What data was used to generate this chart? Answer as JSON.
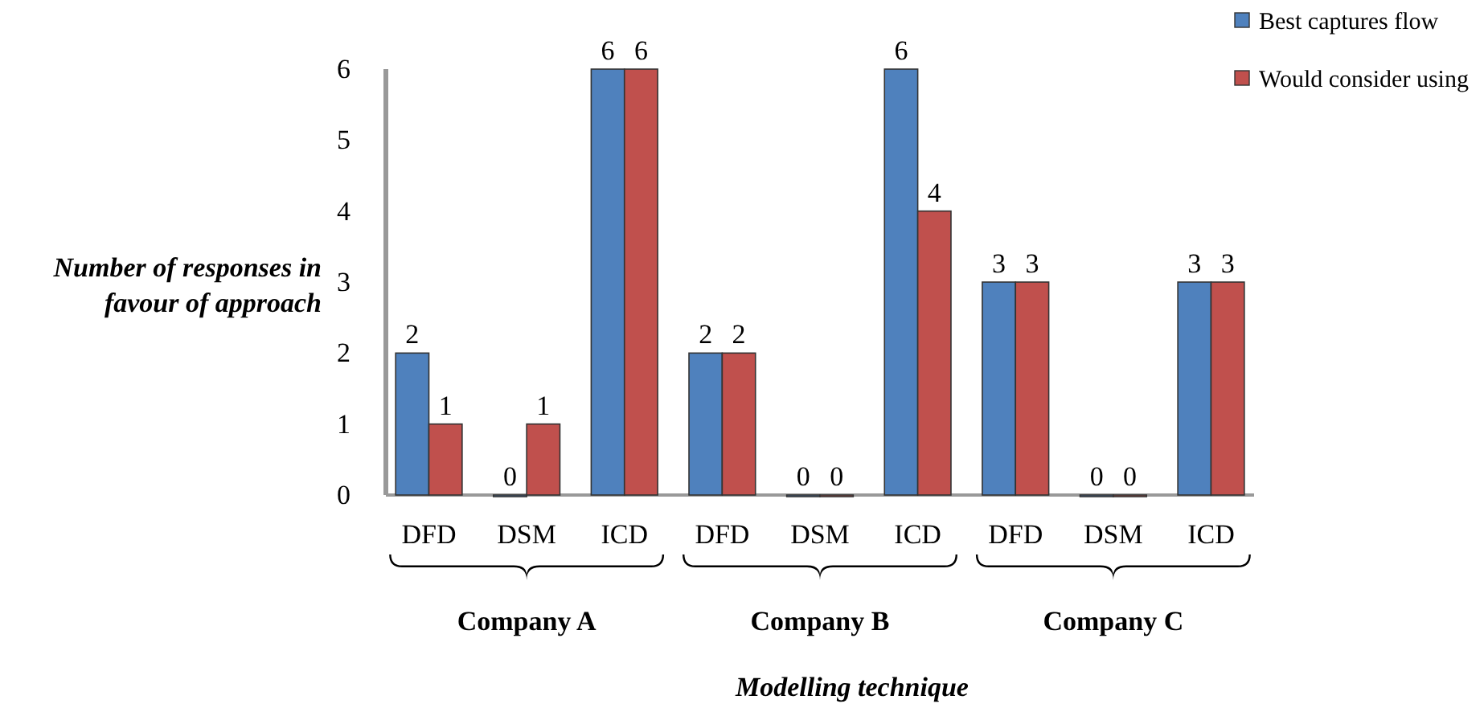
{
  "chart_data": {
    "type": "bar",
    "categories": [
      "DFD",
      "DSM",
      "ICD",
      "DFD",
      "DSM",
      "ICD",
      "DFD",
      "DSM",
      "ICD"
    ],
    "series": [
      {
        "name": "Best captures flow",
        "color": "#4f81bd",
        "values": [
          2,
          0,
          6,
          2,
          0,
          6,
          3,
          0,
          3
        ]
      },
      {
        "name": "Would consider using",
        "color": "#c0504d",
        "values": [
          1,
          1,
          6,
          2,
          0,
          4,
          3,
          0,
          3
        ]
      }
    ],
    "ylim": [
      0,
      6
    ],
    "yticks": [
      0,
      1,
      2,
      3,
      4,
      5,
      6
    ],
    "ylabel": "Number of responses in favour of approach",
    "xlabel": "Modelling technique",
    "annotations": [
      "Company A",
      "Company B",
      "Company C"
    ],
    "data_labels": true,
    "legend": "top right",
    "grid": false
  }
}
